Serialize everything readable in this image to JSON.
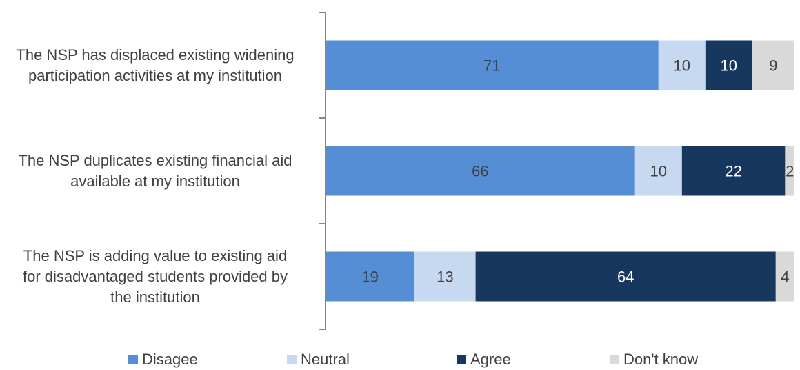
{
  "chart_data": {
    "type": "bar",
    "orientation": "horizontal",
    "stacked": true,
    "title": "",
    "xlabel": "",
    "ylabel": "",
    "xlim": [
      0,
      100
    ],
    "grid": false,
    "legend_position": "bottom",
    "categories": [
      "The NSP has displaced existing widening participation activities at my institution",
      "The NSP duplicates existing financial aid available at my institution",
      "The NSP is adding value to existing aid for disadvantaged students provided by the institution"
    ],
    "category_lines": [
      [
        "The NSP has displaced existing widening",
        "participation activities at my institution"
      ],
      [
        "The NSP duplicates existing financial aid",
        "available at my institution"
      ],
      [
        "The NSP is adding value to existing aid",
        "for disadvantaged students provided by",
        "the institution"
      ]
    ],
    "series": [
      {
        "name": "Disagee",
        "color": "#558ED5",
        "label_color": "#404040",
        "values": [
          71,
          66,
          19
        ]
      },
      {
        "name": "Neutral",
        "color": "#C6D9F1",
        "label_color": "#404040",
        "values": [
          10,
          10,
          13
        ]
      },
      {
        "name": "Agree",
        "color": "#17375E",
        "label_color": "#FFFFFF",
        "values": [
          10,
          22,
          64
        ]
      },
      {
        "name": "Don't know",
        "color": "#D9D9D9",
        "label_color": "#404040",
        "values": [
          9,
          2,
          4
        ]
      }
    ]
  }
}
